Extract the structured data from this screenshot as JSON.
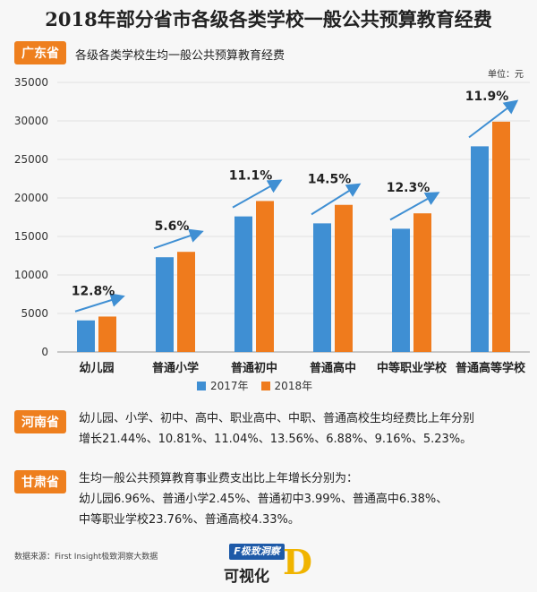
{
  "title": "2018年部分省市各级各类学校一般公共预算教育经费",
  "guangdong": {
    "tag": "广东省",
    "subtitle": "各级各类学校生均一般公共预算教育经费",
    "unit": "单位：元"
  },
  "chart_data": {
    "type": "bar",
    "categories": [
      "幼儿园",
      "普通小学",
      "普通初中",
      "普通高中",
      "中等职业学校",
      "普通高等学校"
    ],
    "series": [
      {
        "name": "2017年",
        "values": [
          4100,
          12300,
          17600,
          16700,
          16000,
          26700
        ]
      },
      {
        "name": "2018年",
        "values": [
          4600,
          13000,
          19600,
          19100,
          18000,
          29900
        ]
      }
    ],
    "growth_labels": [
      "12.8%",
      "5.6%",
      "11.1%",
      "14.5%",
      "12.3%",
      "11.9%"
    ],
    "yticks": [
      "0",
      "5000",
      "10000",
      "15000",
      "20000",
      "25000",
      "30000",
      "35000"
    ],
    "ylim": [
      0,
      35000
    ],
    "colors": {
      "2017年": "#3f8fd3",
      "2018年": "#ef7b1d",
      "arrow": "#3f8fd3"
    }
  },
  "legend": {
    "s1": "2017年",
    "s2": "2018年"
  },
  "henan": {
    "tag": "河南省",
    "line1": "幼儿园、小学、初中、高中、职业高中、中职、普通高校生均经费比上年分别",
    "line2": "增长21.44%、10.81%、11.04%、13.56%、6.88%、9.16%、5.23%。"
  },
  "gansu": {
    "tag": "甘肃省",
    "line1": "生均一般公共预算教育事业费支出比上年增长分别为：",
    "line2": "幼儿园6.96%、普通小学2.45%、普通初中3.99%、普通高中6.38%、",
    "line3": "中等职业学校23.76%、普通高校4.33%。"
  },
  "source": "数据来源：First Insight极致洞察大数据",
  "logo": {
    "top": "F极致洞察",
    "bottom": "可视化",
    "letter": "D"
  }
}
